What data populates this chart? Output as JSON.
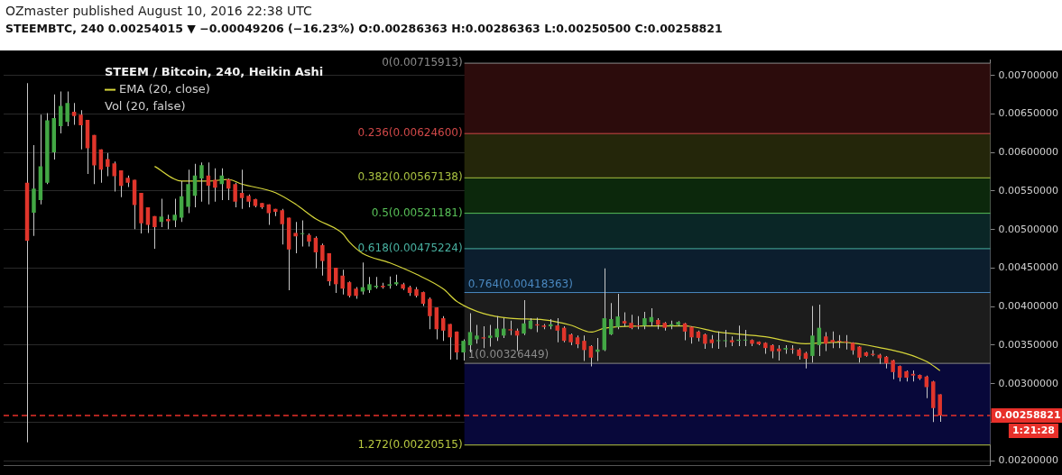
{
  "chart_data": {
    "type": "candlestick",
    "title": "STEEM / Bitcoin, 240, Heikin Ashi",
    "subtitle": "STEEMBTC, 240  0.00254015 ▼ −0.00049206 (−16.23%)  O:0.00286363  H:0.00286363  L:0.00250500  C:0.00258821",
    "annotations": [
      "OZmaster published August 10, 2016 22:38 UTC",
      "Vol (20, false)",
      "1:21:28"
    ],
    "categories": [
      null,
      null,
      null,
      null,
      null,
      null,
      null,
      null,
      null,
      null,
      null,
      null,
      null,
      null,
      null,
      null,
      null,
      null,
      null,
      null,
      null,
      null,
      null,
      null,
      null,
      null,
      null,
      null,
      null,
      null,
      null,
      null,
      null,
      null,
      null,
      null,
      null,
      null,
      null,
      null,
      null,
      null,
      null,
      null,
      null,
      null,
      null,
      null,
      null,
      null,
      null,
      null,
      null,
      null,
      null,
      null,
      null,
      null,
      null,
      null,
      null,
      null,
      null,
      null,
      null,
      null,
      null,
      null,
      null,
      null,
      null,
      null,
      null,
      null,
      null,
      null,
      null,
      null,
      null,
      null,
      null,
      null,
      null,
      null,
      null,
      null,
      null,
      null,
      null,
      null,
      null,
      null,
      null,
      null,
      null,
      null,
      null,
      null,
      null,
      null,
      null,
      null,
      null,
      null,
      null,
      null,
      null,
      null,
      null,
      null,
      null,
      null,
      null,
      null,
      null,
      null,
      null,
      null,
      null,
      null,
      null,
      null,
      null,
      null,
      null,
      null,
      null,
      null,
      null,
      null,
      null,
      null,
      null,
      null,
      null,
      null,
      null,
      null,
      null,
      null,
      null,
      null,
      null,
      null,
      null,
      null,
      null
    ],
    "ohlc": [
      null,
      null,
      null,
      [
        0.005608,
        0.0069,
        0.00224,
        0.004855
      ],
      [
        0.00522,
        0.006097,
        0.004919,
        0.005532
      ],
      [
        0.005382,
        0.006492,
        0.005326,
        0.005822
      ],
      [
        0.005608,
        0.00651,
        0.005589,
        0.006417
      ],
      [
        0.006003,
        0.006755,
        0.005909,
        0.006447
      ],
      [
        0.006341,
        0.006793,
        0.006247,
        0.006605
      ],
      [
        0.006398,
        0.006793,
        0.006341,
        0.006642
      ],
      [
        0.006529,
        0.006642,
        0.00636,
        0.006473
      ],
      [
        0.006492,
        0.006548,
        0.00604,
        0.006353
      ],
      [
        0.006424,
        0.006424,
        0.005721,
        0.006055
      ],
      [
        0.006228,
        0.006228,
        0.005589,
        0.005833
      ],
      [
        0.00604,
        0.00604,
        0.005608,
        0.005777
      ],
      [
        0.005916,
        0.005995,
        0.005694,
        0.005815
      ],
      [
        0.00586,
        0.005882,
        0.005495,
        0.005694
      ],
      [
        0.005769,
        0.005769,
        0.00542,
        0.005566
      ],
      [
        0.005672,
        0.005702,
        0.005551,
        0.005608
      ],
      [
        0.005645,
        0.005645,
        0.005006,
        0.005318
      ],
      [
        0.005476,
        0.005476,
        0.004949,
        0.005081
      ],
      [
        0.005288,
        0.005288,
        0.004957,
        0.005062
      ],
      [
        0.005175,
        0.005175,
        0.00475,
        0.005032
      ],
      [
        0.0051,
        0.005401,
        0.005032,
        0.005168
      ],
      [
        0.005138,
        0.005194,
        0.005006,
        0.005107
      ],
      [
        0.005119,
        0.005401,
        0.005032,
        0.005194
      ],
      [
        0.005156,
        0.005627,
        0.0051,
        0.005431
      ],
      [
        0.005295,
        0.005777,
        0.005213,
        0.005589
      ],
      [
        0.005438,
        0.005852,
        0.005288,
        0.005702
      ],
      [
        0.005664,
        0.005871,
        0.005363,
        0.005837
      ],
      [
        0.005702,
        0.005871,
        0.005326,
        0.00557
      ],
      [
        0.005645,
        0.005796,
        0.005363,
        0.005544
      ],
      [
        0.005589,
        0.005796,
        0.005382,
        0.005702
      ],
      [
        0.005653,
        0.005664,
        0.005382,
        0.005532
      ],
      [
        0.005589,
        0.005608,
        0.005288,
        0.005363
      ],
      [
        0.005476,
        0.005777,
        0.005269,
        0.005408
      ],
      [
        0.005438,
        0.005457,
        0.005288,
        0.005363
      ],
      [
        0.005393,
        0.005401,
        0.005288,
        0.005307
      ],
      [
        0.005344,
        0.005344,
        0.005269,
        0.005288
      ],
      [
        0.005326,
        0.005326,
        0.005062,
        0.005213
      ],
      [
        0.005269,
        0.005269,
        0.005175,
        0.005232
      ],
      [
        0.00525,
        0.005269,
        0.004806,
        0.00507
      ],
      [
        0.005156,
        0.005156,
        0.004212,
        0.004742
      ],
      [
        0.004957,
        0.0051,
        0.004694,
        0.004912
      ],
      [
        0.004942,
        0.005119,
        0.00478,
        0.004949
      ],
      [
        0.004931,
        0.004949,
        0.00478,
        0.004844
      ],
      [
        0.004893,
        0.004912,
        0.004498,
        0.004705
      ],
      [
        0.004799,
        0.004818,
        0.004404,
        0.004592
      ],
      [
        0.004694,
        0.004694,
        0.004272,
        0.004329
      ],
      [
        0.004505,
        0.004505,
        0.004178,
        0.004291
      ],
      [
        0.004403,
        0.004479,
        0.004159,
        0.004234
      ],
      [
        0.004317,
        0.004328,
        0.004121,
        0.00414
      ],
      [
        0.004234,
        0.004253,
        0.004102,
        0.00414
      ],
      [
        0.004196,
        0.004573,
        0.004159,
        0.004253
      ],
      [
        0.004215,
        0.004385,
        0.004178,
        0.004291
      ],
      [
        0.004253,
        0.004385,
        0.004234,
        0.004272
      ],
      [
        0.004272,
        0.004309,
        0.004234,
        0.004253
      ],
      [
        0.004272,
        0.004392,
        0.004234,
        0.004291
      ],
      [
        0.004291,
        0.004415,
        0.004272,
        0.004317
      ],
      [
        0.004291,
        0.004309,
        0.004215,
        0.004234
      ],
      [
        0.004253,
        0.004272,
        0.00414,
        0.004178
      ],
      [
        0.004227,
        0.004253,
        0.004121,
        0.00414
      ],
      [
        0.004189,
        0.004196,
        0.004008,
        0.004038
      ],
      [
        0.004102,
        0.004121,
        0.003707,
        0.003877
      ],
      [
        0.00399,
        0.00399,
        0.003576,
        0.003707
      ],
      [
        0.00385,
        0.003877,
        0.003557,
        0.003689
      ],
      [
        0.003775,
        0.003775,
        0.003312,
        0.003602
      ],
      [
        0.003677,
        0.003677,
        0.003312,
        0.003406
      ],
      [
        0.003406,
        0.003576,
        0.003301,
        0.003557
      ],
      [
        0.0035,
        0.003914,
        0.003406,
        0.00367
      ],
      [
        0.003576,
        0.003764,
        0.003519,
        0.003625
      ],
      [
        0.003602,
        0.003745,
        0.003463,
        0.003587
      ],
      [
        0.003595,
        0.003764,
        0.003482,
        0.003625
      ],
      [
        0.003602,
        0.003877,
        0.003557,
        0.003715
      ],
      [
        0.003625,
        0.00385,
        0.003595,
        0.003715
      ],
      [
        0.003707,
        0.00382,
        0.003632,
        0.003692
      ],
      [
        0.003689,
        0.003715,
        0.003425,
        0.003625
      ],
      [
        0.003651,
        0.004084,
        0.003632,
        0.003783
      ],
      [
        0.003715,
        0.00385,
        0.003707,
        0.00382
      ],
      [
        0.003771,
        0.003858,
        0.00367,
        0.003756
      ],
      [
        0.003756,
        0.003775,
        0.003707,
        0.003737
      ],
      [
        0.003745,
        0.003839,
        0.003707,
        0.003771
      ],
      [
        0.003756,
        0.00385,
        0.003538,
        0.003689
      ],
      [
        0.003726,
        0.003745,
        0.003538,
        0.003557
      ],
      [
        0.00364,
        0.003651,
        0.0035,
        0.003538
      ],
      [
        0.003602,
        0.003625,
        0.003463,
        0.003512
      ],
      [
        0.003557,
        0.003625,
        0.003294,
        0.003437
      ],
      [
        0.003489,
        0.0035,
        0.003226,
        0.003339
      ],
      [
        0.003414,
        0.003595,
        0.003294,
        0.003444
      ],
      [
        0.003437,
        0.004497,
        0.003425,
        0.00385
      ],
      [
        0.00364,
        0.004046,
        0.003632,
        0.003839
      ],
      [
        0.003737,
        0.004166,
        0.003707,
        0.003873
      ],
      [
        0.003813,
        0.003926,
        0.003745,
        0.003783
      ],
      [
        0.00379,
        0.003896,
        0.003707,
        0.003722
      ],
      [
        0.003753,
        0.003877,
        0.003707,
        0.003745
      ],
      [
        0.003753,
        0.003933,
        0.003707,
        0.00385
      ],
      [
        0.003801,
        0.003978,
        0.003745,
        0.003865
      ],
      [
        0.003828,
        0.00385,
        0.003707,
        0.003764
      ],
      [
        0.00379,
        0.003802,
        0.003689,
        0.003726
      ],
      [
        0.003753,
        0.00382,
        0.003708,
        0.003772
      ],
      [
        0.003764,
        0.003813,
        0.003745,
        0.003802
      ],
      [
        0.003783,
        0.00379,
        0.003565,
        0.003677
      ],
      [
        0.003738,
        0.003745,
        0.003519,
        0.003602
      ],
      [
        0.003677,
        0.003689,
        0.003549,
        0.003595
      ],
      [
        0.00364,
        0.003651,
        0.003452,
        0.003519
      ],
      [
        0.003576,
        0.003632,
        0.003463,
        0.003527
      ],
      [
        0.003553,
        0.003677,
        0.003452,
        0.003561
      ],
      [
        0.003553,
        0.0037,
        0.003474,
        0.003561
      ],
      [
        0.003565,
        0.003614,
        0.003489,
        0.003538
      ],
      [
        0.003557,
        0.003753,
        0.003489,
        0.003572
      ],
      [
        0.003561,
        0.0037,
        0.003489,
        0.003568
      ],
      [
        0.003568,
        0.003576,
        0.003489,
        0.003519
      ],
      [
        0.003546,
        0.00355,
        0.003501,
        0.003512
      ],
      [
        0.003531,
        0.003538,
        0.003388,
        0.003463
      ],
      [
        0.003501,
        0.003512,
        0.003331,
        0.003422
      ],
      [
        0.003456,
        0.003501,
        0.003301,
        0.003422
      ],
      [
        0.003444,
        0.003501,
        0.003388,
        0.003463
      ],
      [
        0.003452,
        0.003501,
        0.003388,
        0.003444
      ],
      [
        0.003444,
        0.003463,
        0.003313,
        0.003361
      ],
      [
        0.003399,
        0.003414,
        0.0032,
        0.003324
      ],
      [
        0.003361,
        0.004009,
        0.003275,
        0.003625
      ],
      [
        0.003501,
        0.004027,
        0.003361,
        0.003726
      ],
      [
        0.003614,
        0.00367,
        0.003425,
        0.003519
      ],
      [
        0.003568,
        0.003677,
        0.003463,
        0.003538
      ],
      [
        0.003553,
        0.003632,
        0.003463,
        0.003546
      ],
      [
        0.00355,
        0.003632,
        0.003444,
        0.003538
      ],
      [
        0.003531,
        0.003538,
        0.003376,
        0.003433
      ],
      [
        0.003482,
        0.003489,
        0.003275,
        0.003339
      ],
      [
        0.003407,
        0.003414,
        0.00335,
        0.003361
      ],
      [
        0.003388,
        0.003437,
        0.003358,
        0.003373
      ],
      [
        0.003376,
        0.003388,
        0.003256,
        0.003331
      ],
      [
        0.00335,
        0.003361,
        0.0032,
        0.003264
      ],
      [
        0.003305,
        0.003313,
        0.00306,
        0.003151
      ],
      [
        0.00323,
        0.003237,
        0.00303,
        0.003079
      ],
      [
        0.003162,
        0.003173,
        0.00303,
        0.003079
      ],
      [
        0.003128,
        0.003173,
        0.00303,
        0.003106
      ],
      [
        0.003113,
        0.003121,
        0.003049,
        0.003068
      ],
      [
        0.003094,
        0.003106,
        0.002812,
        0.002955
      ],
      [
        0.00303,
        0.003038,
        0.002504,
        0.002684
      ],
      [
        0.00286363,
        0.00286363,
        0.002505,
        0.00258821
      ],
      null,
      null,
      null,
      null,
      null,
      null,
      null
    ],
    "series": [
      {
        "name": "EMA (20, close)",
        "type": "line",
        "color": "#d6d63a",
        "values": [
          null,
          null,
          null,
          null,
          null,
          null,
          null,
          null,
          null,
          null,
          null,
          null,
          null,
          null,
          null,
          null,
          null,
          null,
          null,
          null,
          null,
          null,
          0.00582,
          null,
          null,
          null,
          0.00563,
          null,
          null,
          null,
          0.00563,
          null,
          null,
          0.00565,
          null,
          0.00559,
          null,
          null,
          null,
          null,
          0.00548,
          null,
          null,
          0.00533,
          null,
          null,
          0.00514,
          null,
          null,
          null,
          0.00495,
          0.00484,
          null,
          0.00469,
          null,
          null,
          null,
          0.00457,
          null,
          null,
          null,
          0.00442,
          null,
          null,
          null,
          0.00423,
          null,
          0.00407,
          null,
          null,
          null,
          0.00391,
          null,
          null,
          null,
          0.00385,
          null,
          null,
          null,
          null,
          0.00383,
          null,
          null,
          null,
          0.00376,
          null,
          null,
          0.00367,
          null,
          0.00372,
          null,
          null,
          null,
          null,
          null,
          0.00375,
          null,
          0.00375,
          null,
          null,
          null,
          0.00375,
          null,
          null,
          null,
          null,
          0.00367,
          null,
          null,
          null,
          null,
          null,
          null,
          0.00361,
          null,
          null,
          null,
          null,
          null,
          0.00352,
          null,
          null,
          null,
          null,
          0.00354,
          null,
          null,
          null,
          null,
          null,
          0.00347,
          null,
          null,
          null,
          null,
          null,
          null,
          0.00329,
          null,
          0.00317,
          null,
          null,
          null,
          null,
          null,
          null,
          null
        ]
      }
    ],
    "ylim": [
      0.00194,
      0.0072
    ],
    "yticks": [
      {
        "value": 0.002,
        "label": "0.00200000"
      },
      {
        "value": 0.0025,
        "label": null
      },
      {
        "value": 0.003,
        "label": "0.00300000"
      },
      {
        "value": 0.0035,
        "label": "0.00350000"
      },
      {
        "value": 0.004,
        "label": "0.00400000"
      },
      {
        "value": 0.0045,
        "label": "0.00450000"
      },
      {
        "value": 0.005,
        "label": "0.00500000"
      },
      {
        "value": 0.0055,
        "label": "0.00550000"
      },
      {
        "value": 0.006,
        "label": "0.00600000"
      },
      {
        "value": 0.0065,
        "label": "0.00650000"
      },
      {
        "value": 0.007,
        "label": "0.00700000"
      }
    ],
    "ref_lines": [
      {
        "axis": "y",
        "value": 0.00715913,
        "label": "0(0.00715913)",
        "color": "#8a8a8a"
      },
      {
        "axis": "y",
        "value": 0.006246,
        "label": "0.236(0.00624600)",
        "color": "#d04848"
      },
      {
        "axis": "y",
        "value": 0.00567138,
        "label": "0.382(0.00567138)",
        "color": "#a8c040"
      },
      {
        "axis": "y",
        "value": 0.00521181,
        "label": "0.5(0.00521181)",
        "color": "#58c058"
      },
      {
        "axis": "y",
        "value": 0.00475224,
        "label": "0.618(0.00475224)",
        "color": "#48b0a0"
      },
      {
        "axis": "y",
        "value": 0.00418363,
        "label": "0.764(0.00418363)",
        "color": "#4a88c0"
      },
      {
        "axis": "y",
        "value": 0.00326449,
        "label": "1(0.00326449)",
        "color": "#8a8a8a"
      },
      {
        "axis": "y",
        "value": 0.00220515,
        "label": "1.272(0.00220515)",
        "color": "#b8c840"
      },
      {
        "axis": "y",
        "value": 0.00258821,
        "label": "0.00258821",
        "color": "#e8302a",
        "line_style": "dashed"
      }
    ],
    "bands": [
      {
        "axis": "y",
        "from": 0.006246,
        "to": 0.00715913,
        "color": "#2c0c0c"
      },
      {
        "axis": "y",
        "from": 0.00567138,
        "to": 0.006246,
        "color": "#24260a"
      },
      {
        "axis": "y",
        "from": 0.00521181,
        "to": 0.00567138,
        "color": "#0c280c"
      },
      {
        "axis": "y",
        "from": 0.00475224,
        "to": 0.00521181,
        "color": "#0a2626"
      },
      {
        "axis": "y",
        "from": 0.00418363,
        "to": 0.00475224,
        "color": "#0c1e2e"
      },
      {
        "axis": "y",
        "from": 0.00326449,
        "to": 0.00418363,
        "color": "#1c1c1c"
      },
      {
        "axis": "y",
        "from": 0.00220515,
        "to": 0.00326449,
        "color": "#08083a"
      }
    ],
    "grid": "y",
    "legend": "top left",
    "tick_labels": "y"
  }
}
